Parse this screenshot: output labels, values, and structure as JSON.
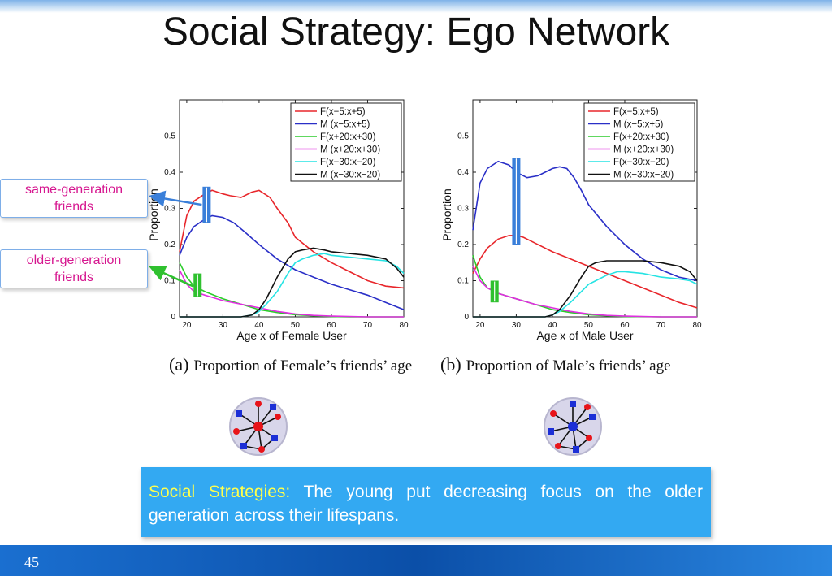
{
  "slide": {
    "title": "Social Strategy: Ego Network",
    "page_number": "45",
    "callouts": {
      "same_generation": [
        "same-generation",
        "friends"
      ],
      "older_generation": [
        "older-generation",
        "friends"
      ]
    },
    "strategy": {
      "heading": "Social Strategies:",
      "text": " The young put decreasing focus on the older generation across their lifespans."
    },
    "captions": {
      "female": {
        "label": "(a)",
        "text": "Proportion of Female’s friends’ age"
      },
      "male": {
        "label": "(b)",
        "text": "Proportion of Male’s friends’ age"
      }
    },
    "colors": {
      "female_node": "#e8141a",
      "male_node": "#1c2fd6",
      "callout_same": "#3a7fd9",
      "callout_older": "#2fc12f"
    }
  },
  "chart_data": [
    {
      "type": "line",
      "xlabel": "Age x of Female User",
      "ylabel": "Proportion",
      "xlim": [
        18,
        80
      ],
      "ylim": [
        0,
        0.6
      ],
      "xticks": [
        20,
        30,
        40,
        50,
        60,
        70,
        80
      ],
      "yticks": [
        0,
        0.1,
        0.2,
        0.3,
        0.4,
        0.5
      ],
      "legend_position": "top-right",
      "series": [
        {
          "name": "F(x−5:x+5)",
          "color": "#e8262b",
          "x": [
            18,
            20,
            22,
            25,
            27,
            30,
            32,
            35,
            38,
            40,
            43,
            45,
            48,
            50,
            55,
            60,
            65,
            70,
            75,
            80
          ],
          "y": [
            0.18,
            0.28,
            0.32,
            0.34,
            0.35,
            0.34,
            0.335,
            0.33,
            0.345,
            0.35,
            0.33,
            0.3,
            0.26,
            0.22,
            0.18,
            0.15,
            0.125,
            0.1,
            0.085,
            0.08
          ]
        },
        {
          "name": "M (x−5:x+5)",
          "color": "#2a2fc7",
          "x": [
            18,
            20,
            22,
            25,
            27,
            30,
            33,
            36,
            40,
            45,
            50,
            55,
            60,
            65,
            70,
            75,
            80
          ],
          "y": [
            0.17,
            0.22,
            0.25,
            0.27,
            0.28,
            0.275,
            0.26,
            0.235,
            0.2,
            0.16,
            0.13,
            0.11,
            0.09,
            0.075,
            0.06,
            0.04,
            0.02
          ]
        },
        {
          "name": "F(x+20:x+30)",
          "color": "#2bcc2b",
          "x": [
            18,
            20,
            22,
            25,
            30,
            35,
            40,
            45,
            50,
            55,
            60,
            65,
            70,
            80
          ],
          "y": [
            0.15,
            0.11,
            0.085,
            0.07,
            0.05,
            0.035,
            0.02,
            0.012,
            0.006,
            0.003,
            0.001,
            0,
            0,
            0
          ]
        },
        {
          "name": "M (x+20:x+30)",
          "color": "#e02ee0",
          "x": [
            18,
            20,
            22,
            25,
            30,
            35,
            40,
            45,
            50,
            55,
            60,
            70,
            80
          ],
          "y": [
            0.13,
            0.09,
            0.07,
            0.06,
            0.045,
            0.035,
            0.025,
            0.015,
            0.008,
            0.004,
            0.002,
            0,
            0
          ]
        },
        {
          "name": "F(x−30:x−20)",
          "color": "#27e3e3",
          "x": [
            18,
            30,
            35,
            38,
            40,
            42,
            45,
            48,
            50,
            52,
            55,
            58,
            60,
            65,
            70,
            75,
            78,
            80
          ],
          "y": [
            0,
            0,
            0,
            0.005,
            0.015,
            0.035,
            0.07,
            0.12,
            0.15,
            0.16,
            0.17,
            0.175,
            0.17,
            0.165,
            0.16,
            0.155,
            0.14,
            0.12
          ]
        },
        {
          "name": "M (x−30:x−20)",
          "color": "#111111",
          "x": [
            18,
            30,
            35,
            38,
            40,
            42,
            45,
            48,
            50,
            52,
            55,
            58,
            60,
            65,
            70,
            75,
            78,
            80
          ],
          "y": [
            0,
            0,
            0,
            0.005,
            0.02,
            0.05,
            0.11,
            0.16,
            0.18,
            0.185,
            0.19,
            0.185,
            0.18,
            0.175,
            0.17,
            0.16,
            0.135,
            0.11
          ]
        }
      ]
    },
    {
      "type": "line",
      "xlabel": "Age x of Male User",
      "ylabel": "Proportion",
      "xlim": [
        18,
        80
      ],
      "ylim": [
        0,
        0.6
      ],
      "xticks": [
        20,
        30,
        40,
        50,
        60,
        70,
        80
      ],
      "yticks": [
        0,
        0.1,
        0.2,
        0.3,
        0.4,
        0.5
      ],
      "legend_position": "top-right",
      "series": [
        {
          "name": "F(x−5:x+5)",
          "color": "#e8262b",
          "x": [
            18,
            20,
            22,
            25,
            28,
            30,
            32,
            35,
            40,
            45,
            50,
            55,
            60,
            65,
            70,
            75,
            80
          ],
          "y": [
            0.12,
            0.16,
            0.19,
            0.215,
            0.225,
            0.225,
            0.22,
            0.205,
            0.18,
            0.16,
            0.14,
            0.12,
            0.1,
            0.08,
            0.06,
            0.04,
            0.025
          ]
        },
        {
          "name": "M (x−5:x+5)",
          "color": "#2a2fc7",
          "x": [
            18,
            20,
            22,
            25,
            28,
            30,
            33,
            36,
            38,
            40,
            42,
            44,
            46,
            48,
            50,
            55,
            60,
            65,
            70,
            75,
            80
          ],
          "y": [
            0.24,
            0.37,
            0.41,
            0.43,
            0.42,
            0.4,
            0.385,
            0.39,
            0.4,
            0.41,
            0.415,
            0.41,
            0.385,
            0.35,
            0.31,
            0.25,
            0.2,
            0.16,
            0.13,
            0.11,
            0.1
          ]
        },
        {
          "name": "F(x+20:x+30)",
          "color": "#2bcc2b",
          "x": [
            18,
            20,
            22,
            25,
            30,
            35,
            40,
            45,
            50,
            55,
            60,
            70,
            80
          ],
          "y": [
            0.17,
            0.11,
            0.08,
            0.065,
            0.05,
            0.035,
            0.02,
            0.012,
            0.006,
            0.003,
            0.001,
            0,
            0
          ]
        },
        {
          "name": "M (x+20:x+30)",
          "color": "#e02ee0",
          "x": [
            18,
            20,
            22,
            25,
            30,
            35,
            40,
            45,
            50,
            55,
            60,
            70,
            80
          ],
          "y": [
            0.14,
            0.1,
            0.08,
            0.065,
            0.05,
            0.035,
            0.025,
            0.015,
            0.008,
            0.004,
            0.002,
            0,
            0
          ]
        },
        {
          "name": "F(x−30:x−20)",
          "color": "#27e3e3",
          "x": [
            18,
            30,
            38,
            40,
            42,
            45,
            48,
            50,
            52,
            55,
            58,
            60,
            65,
            70,
            75,
            78,
            80
          ],
          "y": [
            0,
            0,
            0,
            0.005,
            0.015,
            0.04,
            0.07,
            0.09,
            0.1,
            0.115,
            0.125,
            0.125,
            0.12,
            0.11,
            0.105,
            0.1,
            0.09
          ]
        },
        {
          "name": "M (x−30:x−20)",
          "color": "#111111",
          "x": [
            18,
            30,
            38,
            40,
            42,
            45,
            48,
            50,
            52,
            55,
            58,
            60,
            65,
            70,
            75,
            78,
            80
          ],
          "y": [
            0,
            0,
            0,
            0.005,
            0.02,
            0.06,
            0.11,
            0.14,
            0.15,
            0.155,
            0.155,
            0.155,
            0.155,
            0.15,
            0.14,
            0.125,
            0.1
          ]
        }
      ]
    }
  ]
}
